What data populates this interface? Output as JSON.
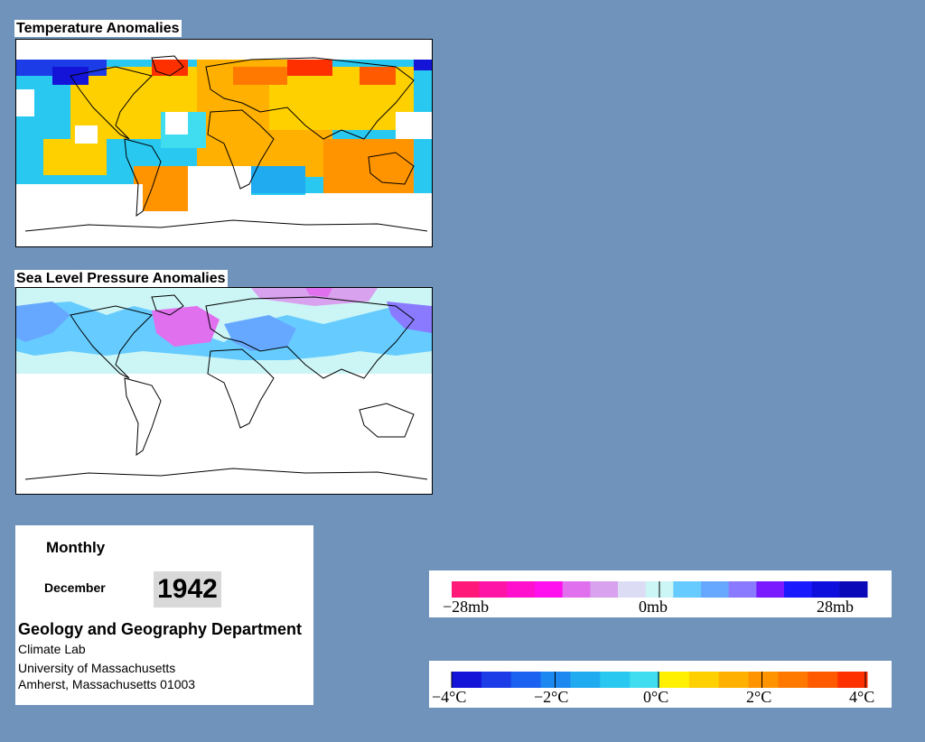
{
  "temperature_map": {
    "title": "Temperature Anomalies"
  },
  "pressure_map": {
    "title": "Sea Level Pressure Anomalies"
  },
  "info": {
    "period": "Monthly",
    "month": "December",
    "year": "1942",
    "department": "Geology and Geography Department",
    "lab": "Climate Lab",
    "university": "University of Massachusetts",
    "address": "Amherst, Massachusetts 01003"
  },
  "pressure_legend": {
    "colors": [
      "#ff1a7a",
      "#ff14a8",
      "#ff10cc",
      "#ff10ee",
      "#e070ee",
      "#d8a2ee",
      "#dcdcf5",
      "#ccf5f5",
      "#66ccff",
      "#66a8ff",
      "#8a7aff",
      "#7a1aff",
      "#1a1aff",
      "#0f0fdd",
      "#0a0ab8"
    ],
    "labels": [
      "−28mb",
      "0mb",
      "28mb"
    ]
  },
  "temperature_legend": {
    "colors": [
      "#1414d8",
      "#1c3ce8",
      "#1c62f0",
      "#1c88f0",
      "#20aaf0",
      "#28c8f0",
      "#40ddf0",
      "#fff000",
      "#ffd000",
      "#ffb000",
      "#ff9400",
      "#ff7800",
      "#ff5a00",
      "#ff3000"
    ],
    "labels": [
      "−4°C",
      "−2°C",
      "0°C",
      "2°C",
      "4°C"
    ]
  }
}
